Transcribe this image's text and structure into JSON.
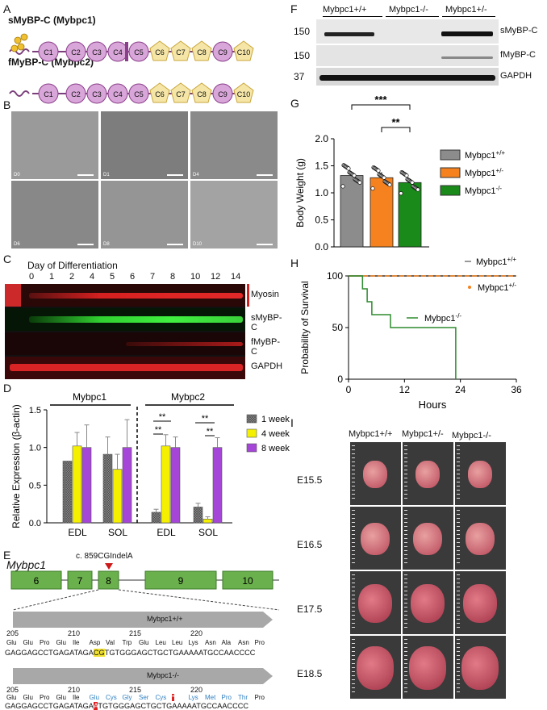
{
  "panels": {
    "a": {
      "letter": "A",
      "isoforms": [
        {
          "title": "sMyBP-C (Mybpc1)",
          "domains": [
            "C1",
            "C2",
            "C3",
            "C4",
            "C5",
            "C6",
            "C7",
            "C8",
            "C9",
            "C10"
          ]
        },
        {
          "title": "fMyBP-C (Mybpc2)",
          "domains": [
            "C1",
            "C2",
            "C3",
            "C4",
            "C5",
            "C6",
            "C7",
            "C8",
            "C9",
            "C10"
          ]
        }
      ]
    },
    "b": {
      "letter": "B",
      "days": [
        "D0",
        "D1",
        "D4",
        "D6",
        "D8",
        "D10"
      ]
    },
    "c": {
      "letter": "C",
      "title": "Day of Differentiation",
      "days": [
        "0",
        "1",
        "2",
        "4",
        "5",
        "6",
        "7",
        "8",
        "10",
        "12",
        "14"
      ],
      "bands": [
        "Myosin",
        "sMyBP-C",
        "fMyBP-C",
        "GAPDH"
      ]
    },
    "d": {
      "letter": "D"
    },
    "e": {
      "letter": "E",
      "gene": "Mybpc1",
      "exons": [
        "6",
        "7",
        "8",
        "9",
        "10"
      ],
      "mutation": "c. 859CGIndelA",
      "wt": {
        "label": "Mybpc1+/+",
        "positions": [
          "205",
          "210",
          "215",
          "220"
        ],
        "aa": [
          "Glu",
          "Glu",
          "Pro",
          "Glu",
          "Ile",
          "Asp",
          "Val",
          "Trp",
          "Glu",
          "Leu",
          "Leu",
          "Lys",
          "Asn",
          "Ala",
          "Asn",
          "Pro"
        ],
        "dna_pre": "GAGGAGCCTGAGATAGA",
        "dna_hl": "CG",
        "dna_post": "TGTGGGAGCTGCTGAAAAATGCCAACCCC"
      },
      "ko": {
        "label": "Mybpc1-/-",
        "positions": [
          "205",
          "210",
          "215",
          "220"
        ],
        "aa": [
          "Glu",
          "Glu",
          "Pro",
          "Glu",
          "Ile",
          "Glu",
          "Cys",
          "Gly",
          "Ser",
          "Cys",
          "*",
          "Lys",
          "Met",
          "Pro",
          "Thr",
          "Pro"
        ],
        "dna_pre": "GAGGAGCCTGAGATAGA",
        "dna_hl": "A",
        "dna_post": "TGTGGGAGCTGCTGAAAAATGCCAACCCC"
      }
    },
    "f": {
      "letter": "F",
      "groups": [
        "Mybpc1+/+",
        "Mybpc1-/-",
        "Mybpc1+/-"
      ],
      "mw": [
        "150",
        "150",
        "37"
      ],
      "bands": [
        "sMyBP-C",
        "fMyBP-C",
        "GAPDH"
      ]
    },
    "g": {
      "letter": "G"
    },
    "h": {
      "letter": "H"
    },
    "i": {
      "letter": "I",
      "columns": [
        "Mybpc1+/+",
        "Mybpc1+/-",
        "Mybpc1-/-"
      ],
      "stages": [
        "E15.5",
        "E16.5",
        "E17.5",
        "E18.5"
      ]
    }
  },
  "chart_data": [
    {
      "id": "D",
      "type": "bar",
      "groups": [
        {
          "gene": "Mybpc1",
          "muscles": [
            "EDL",
            "SOL"
          ]
        },
        {
          "gene": "Mybpc2",
          "muscles": [
            "EDL",
            "SOL"
          ]
        }
      ],
      "categories": [
        "EDL",
        "SOL",
        "EDL",
        "SOL"
      ],
      "series": [
        {
          "name": "1 week",
          "values": [
            0.82,
            0.91,
            0.14,
            0.21
          ],
          "errors": [
            0.0,
            0.23,
            0.04,
            0.05
          ],
          "color": "#8c8c8c"
        },
        {
          "name": "4 week",
          "values": [
            1.02,
            0.71,
            1.02,
            0.05
          ],
          "errors": [
            0.18,
            0.2,
            0.15,
            0.03
          ],
          "color": "#f4f000"
        },
        {
          "name": "8 week",
          "values": [
            1.0,
            1.0,
            1.0,
            1.0
          ],
          "errors": [
            0.3,
            0.37,
            0.14,
            0.13
          ],
          "color": "#a646d8"
        }
      ],
      "ylabel": "Relative Expression (β-actin)",
      "ylim": [
        0,
        1.5
      ],
      "yticks": [
        "0.0",
        "0.5",
        "1.0",
        "1.5"
      ],
      "significance": [
        "**",
        "**",
        "**",
        "**"
      ]
    },
    {
      "id": "G",
      "type": "bar",
      "categories": [
        "Mybpc1+/+",
        "Mybpc1+/-",
        "Mybpc1-/-"
      ],
      "values": [
        1.32,
        1.28,
        1.19
      ],
      "errors": [
        0.07,
        0.1,
        0.06
      ],
      "colors": [
        "#8c8c8c",
        "#f5821f",
        "#1a8a1a"
      ],
      "ylabel": "Body Weight (g)",
      "ylim": [
        0,
        2.0
      ],
      "yticks": [
        "0.0",
        "0.5",
        "1.0",
        "1.5",
        "2.0"
      ],
      "significance": [
        "***",
        "**"
      ]
    },
    {
      "id": "H",
      "type": "line",
      "xlabel": "Hours",
      "ylabel": "Probability of Survival",
      "xlim": [
        0,
        36
      ],
      "ylim": [
        0,
        100
      ],
      "xticks": [
        "0",
        "12",
        "24",
        "36"
      ],
      "yticks": [
        "0",
        "50",
        "100"
      ],
      "series": [
        {
          "name": "Mybpc1+/+",
          "x": [
            0,
            36
          ],
          "y": [
            100,
            100
          ],
          "color": "#333333"
        },
        {
          "name": "Mybpc1+/-",
          "x": [
            0,
            36
          ],
          "y": [
            100,
            100
          ],
          "color": "#f5821f"
        },
        {
          "name": "Mybpc1-/-",
          "x": [
            0,
            3,
            3,
            4,
            4,
            5,
            5,
            9,
            9,
            23,
            23
          ],
          "y": [
            100,
            100,
            87.5,
            87.5,
            75,
            75,
            62.5,
            62.5,
            50,
            50,
            0
          ],
          "color": "#2e8b2e"
        }
      ]
    }
  ]
}
